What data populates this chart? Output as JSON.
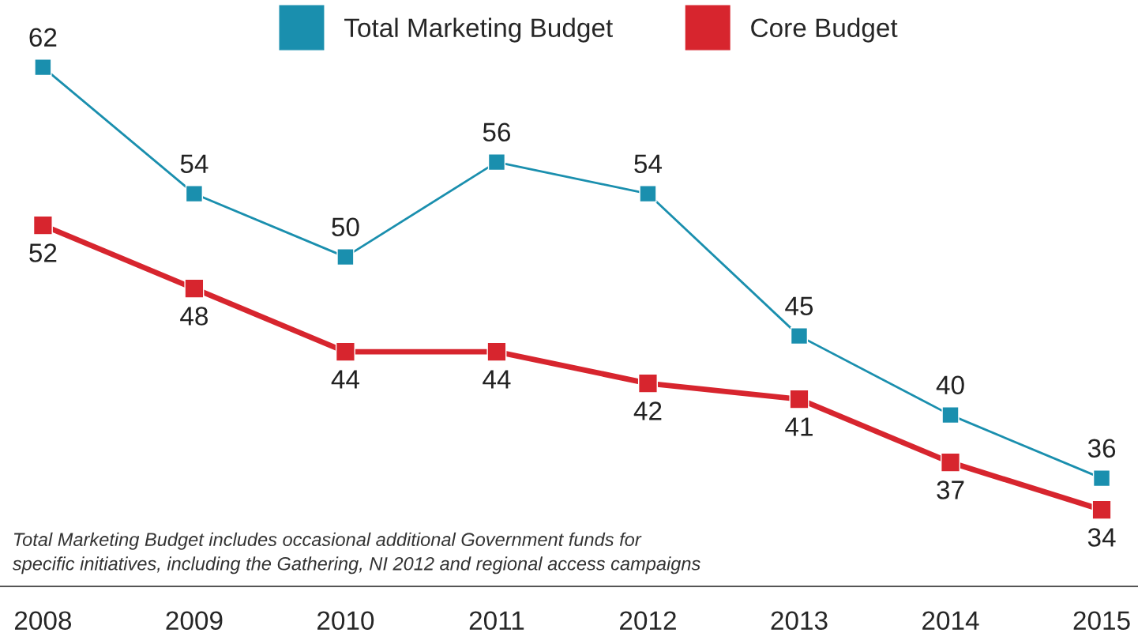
{
  "chart_data": {
    "type": "line",
    "categories": [
      "2008",
      "2009",
      "2010",
      "2011",
      "2012",
      "2013",
      "2014",
      "2015"
    ],
    "series": [
      {
        "name": "Total Marketing Budget",
        "color": "#1a8fae",
        "values": [
          62,
          54,
          50,
          56,
          54,
          45,
          40,
          36
        ]
      },
      {
        "name": "Core Budget",
        "color": "#d7252e",
        "values": [
          52,
          48,
          44,
          44,
          42,
          41,
          37,
          34
        ]
      }
    ],
    "marker": "square",
    "data_labels": true,
    "legend": "top",
    "grid": false,
    "tick_labels": "x",
    "annotations": [
      "Total Marketing Budget includes occasional additional Government funds for\nspecific initiatives, including the Gathering, NI 2012 and regional access campaigns"
    ]
  }
}
